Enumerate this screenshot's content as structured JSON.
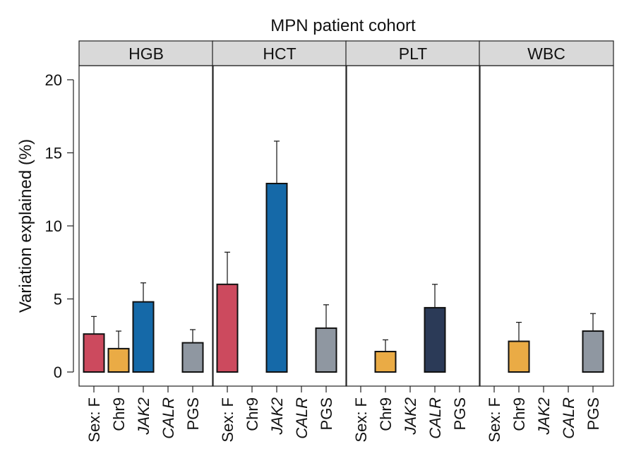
{
  "chart_data": {
    "type": "bar",
    "title": "MPN patient cohort",
    "ylabel": "Variation explained (%)",
    "ylim": [
      0,
      20
    ],
    "yticks": [
      "0",
      "5",
      "10",
      "15",
      "20"
    ],
    "categories": [
      {
        "label": "Sex: F",
        "italic": false
      },
      {
        "label": "Chr9",
        "italic": false
      },
      {
        "label": "JAK2",
        "italic": true
      },
      {
        "label": "CALR",
        "italic": true
      },
      {
        "label": "PGS",
        "italic": false
      }
    ],
    "colors": {
      "Sex: F": "#cc4a5e",
      "Chr9": "#eaab45",
      "JAK2": "#1569a8",
      "CALR": "#2b3a57",
      "PGS": "#8f97a1"
    },
    "panels": [
      {
        "name": "HGB",
        "values": [
          2.6,
          1.6,
          4.8,
          null,
          2.0
        ],
        "errors": [
          3.8,
          2.8,
          6.1,
          null,
          2.9
        ]
      },
      {
        "name": "HCT",
        "values": [
          6.0,
          null,
          12.9,
          null,
          3.0
        ],
        "errors": [
          8.2,
          null,
          15.8,
          null,
          4.6
        ]
      },
      {
        "name": "PLT",
        "values": [
          null,
          1.4,
          null,
          4.4,
          null
        ],
        "errors": [
          null,
          2.2,
          null,
          6.0,
          null
        ]
      },
      {
        "name": "WBC",
        "values": [
          null,
          2.1,
          null,
          null,
          2.8
        ],
        "errors": [
          null,
          3.4,
          null,
          null,
          4.0
        ]
      }
    ]
  }
}
